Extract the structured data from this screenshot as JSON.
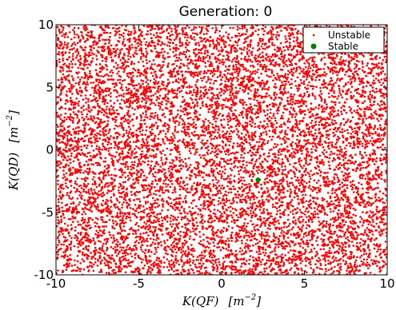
{
  "chart_data": {
    "type": "scatter",
    "title": "Generation: 0",
    "xlabel": "K(QF)   [m^-2]",
    "ylabel": "K(QD)   [m^-2]",
    "xlabel_main": "K(QF)",
    "xlabel_unit": "[m",
    "xlabel_exp": "−2",
    "xlabel_close": "]",
    "ylabel_main": "K(QD)",
    "ylabel_unit": "[m",
    "ylabel_exp": "−2",
    "ylabel_close": "]",
    "xlim": [
      -10,
      10
    ],
    "ylim": [
      -10,
      10
    ],
    "xticks": [
      "-10",
      "-5",
      "0",
      "5",
      "10"
    ],
    "yticks": [
      "-10",
      "-5",
      "0",
      "5",
      "10"
    ],
    "grid": false,
    "legend_position": "top-right",
    "series": [
      {
        "name": "Unstable",
        "color": "#ff0000",
        "marker": "dot",
        "distribution": "dense uniform random cloud over the full axis range (approx. 10000 points)",
        "count": 10000
      },
      {
        "name": "Stable",
        "color": "#008000",
        "marker": "circle",
        "points": [
          [
            2.2,
            -2.4
          ]
        ]
      }
    ]
  }
}
